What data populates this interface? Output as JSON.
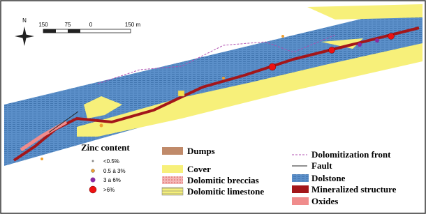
{
  "north": "N",
  "scale_bar": {
    "labels": [
      "150",
      "75",
      "0",
      "150 m"
    ]
  },
  "legend": {
    "zinc": {
      "title": "Zinc content",
      "items": [
        "<0.5%",
        "0.5 à 3%",
        "3 a 6%",
        ">6%"
      ]
    },
    "units": [
      "Dumps",
      "Cover",
      "Dolomitic breccias",
      "Dolomitic limestone"
    ],
    "structures": [
      "Dolomitization front",
      "Fault",
      "Dolstone",
      "Mineralized structure",
      "Oxides"
    ]
  }
}
